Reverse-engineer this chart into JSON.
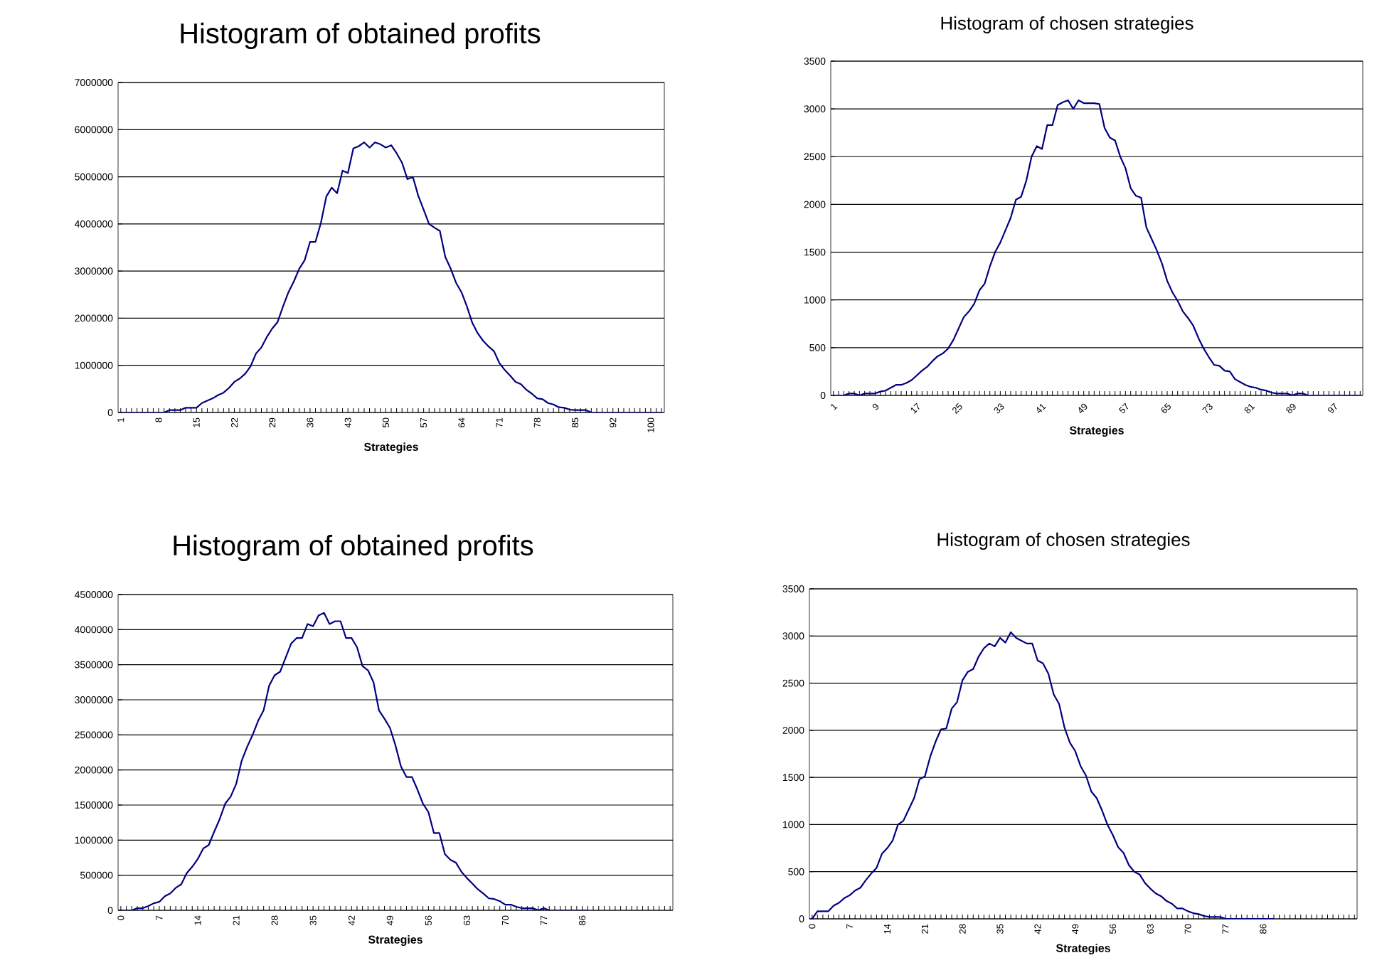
{
  "chart_data": [
    {
      "type": "line",
      "title": "Histogram of obtained profits",
      "xlabel": "Strategies",
      "categories": [
        "1",
        null,
        null,
        null,
        null,
        null,
        null,
        "8",
        null,
        null,
        null,
        null,
        null,
        null,
        "15",
        null,
        null,
        null,
        null,
        null,
        null,
        "22",
        null,
        null,
        null,
        null,
        null,
        null,
        "29",
        null,
        null,
        null,
        null,
        null,
        null,
        "36",
        null,
        null,
        null,
        null,
        null,
        null,
        "43",
        null,
        null,
        null,
        null,
        null,
        null,
        "50",
        null,
        null,
        null,
        null,
        null,
        null,
        "57",
        null,
        null,
        null,
        null,
        null,
        null,
        "64",
        null,
        null,
        null,
        null,
        null,
        null,
        "71",
        null,
        null,
        null,
        null,
        null,
        null,
        "78",
        null,
        null,
        null,
        null,
        null,
        null,
        "85",
        null,
        null,
        null,
        null,
        null,
        null,
        "92",
        null,
        null,
        null,
        null,
        null,
        null,
        "100",
        null,
        null
      ],
      "series": [
        {
          "color": "#000080",
          "values": [
            0,
            0,
            0,
            0,
            0,
            0,
            0,
            0,
            0,
            50000,
            50000,
            50000,
            100000,
            100000,
            100000,
            200000,
            250000,
            300000,
            370000,
            420000,
            520000,
            650000,
            720000,
            820000,
            980000,
            1250000,
            1380000,
            1600000,
            1780000,
            1920000,
            2250000,
            2550000,
            2780000,
            3050000,
            3230000,
            3620000,
            3620000,
            4020000,
            4580000,
            4770000,
            4650000,
            5130000,
            5080000,
            5600000,
            5650000,
            5730000,
            5620000,
            5730000,
            5690000,
            5620000,
            5670000,
            5500000,
            5300000,
            4950000,
            5000000,
            4600000,
            4300000,
            4000000,
            3920000,
            3850000,
            3300000,
            3050000,
            2750000,
            2550000,
            2250000,
            1900000,
            1680000,
            1520000,
            1400000,
            1300000,
            1050000,
            900000,
            780000,
            650000,
            600000,
            480000,
            400000,
            300000,
            280000,
            200000,
            170000,
            110000,
            100000,
            60000,
            50000,
            50000,
            50000,
            0,
            0,
            0,
            0,
            0,
            0,
            0,
            0,
            0,
            0,
            0,
            0,
            0,
            0
          ]
        }
      ],
      "ylim": [
        0,
        7000000
      ],
      "yticks": [
        0,
        1000000,
        2000000,
        3000000,
        4000000,
        5000000,
        6000000,
        7000000
      ],
      "grid": "y"
    },
    {
      "type": "line",
      "title": "Histogram of chosen strategies",
      "xlabel": "Strategies",
      "categories": [
        "1",
        null,
        null,
        null,
        null,
        null,
        null,
        null,
        "9",
        null,
        null,
        null,
        null,
        null,
        null,
        null,
        "17",
        null,
        null,
        null,
        null,
        null,
        null,
        null,
        "25",
        null,
        null,
        null,
        null,
        null,
        null,
        null,
        "33",
        null,
        null,
        null,
        null,
        null,
        null,
        null,
        "41",
        null,
        null,
        null,
        null,
        null,
        null,
        null,
        "49",
        null,
        null,
        null,
        null,
        null,
        null,
        null,
        "57",
        null,
        null,
        null,
        null,
        null,
        null,
        null,
        "65",
        null,
        null,
        null,
        null,
        null,
        null,
        null,
        "73",
        null,
        null,
        null,
        null,
        null,
        null,
        null,
        "81",
        null,
        null,
        null,
        null,
        null,
        null,
        null,
        "89",
        null,
        null,
        null,
        null,
        null,
        null,
        null,
        "97",
        null,
        null,
        null,
        null,
        null
      ],
      "series": [
        {
          "color": "#000080",
          "values": [
            0,
            0,
            0,
            20,
            20,
            0,
            20,
            20,
            20,
            40,
            50,
            80,
            110,
            110,
            130,
            160,
            210,
            260,
            300,
            360,
            410,
            440,
            490,
            580,
            700,
            820,
            880,
            960,
            1100,
            1170,
            1350,
            1500,
            1600,
            1730,
            1860,
            2050,
            2080,
            2250,
            2500,
            2610,
            2580,
            2830,
            2830,
            3040,
            3070,
            3090,
            3000,
            3090,
            3060,
            3060,
            3060,
            3050,
            2800,
            2700,
            2670,
            2500,
            2380,
            2170,
            2090,
            2070,
            1760,
            1640,
            1520,
            1380,
            1200,
            1080,
            990,
            880,
            810,
            730,
            600,
            490,
            400,
            320,
            310,
            260,
            250,
            170,
            140,
            110,
            90,
            80,
            60,
            50,
            30,
            20,
            20,
            20,
            0,
            20,
            20,
            0,
            0,
            0,
            0,
            0,
            0,
            0,
            0,
            0,
            0,
            0
          ]
        }
      ],
      "ylim": [
        0,
        3500
      ],
      "yticks": [
        0,
        500,
        1000,
        1500,
        2000,
        2500,
        3000,
        3500
      ],
      "grid": "y"
    },
    {
      "type": "line",
      "title": "Histogram of obtained profits",
      "xlabel": "Strategies",
      "categories": [
        "0",
        null,
        null,
        null,
        null,
        null,
        null,
        "7",
        null,
        null,
        null,
        null,
        null,
        null,
        "14",
        null,
        null,
        null,
        null,
        null,
        null,
        "21",
        null,
        null,
        null,
        null,
        null,
        null,
        "28",
        null,
        null,
        null,
        null,
        null,
        null,
        "35",
        null,
        null,
        null,
        null,
        null,
        null,
        "42",
        null,
        null,
        null,
        null,
        null,
        null,
        "49",
        null,
        null,
        null,
        null,
        null,
        null,
        "56",
        null,
        null,
        null,
        null,
        null,
        null,
        "63",
        null,
        null,
        null,
        null,
        null,
        null,
        "70",
        null,
        null,
        null,
        null,
        null,
        null,
        "77",
        null,
        null,
        null,
        null,
        null,
        null,
        "86",
        null,
        null,
        null,
        null,
        null,
        null,
        null,
        null,
        null,
        null,
        null,
        null,
        null,
        null,
        null,
        null
      ],
      "series": [
        {
          "color": "#000080",
          "values": [
            0,
            0,
            0,
            30000,
            30000,
            60000,
            100000,
            120000,
            200000,
            240000,
            320000,
            370000,
            530000,
            620000,
            730000,
            880000,
            930000,
            1120000,
            1300000,
            1520000,
            1620000,
            1800000,
            2130000,
            2330000,
            2500000,
            2700000,
            2850000,
            3200000,
            3350000,
            3400000,
            3600000,
            3800000,
            3880000,
            3880000,
            4080000,
            4050000,
            4200000,
            4240000,
            4080000,
            4120000,
            4120000,
            3880000,
            3880000,
            3750000,
            3480000,
            3420000,
            3250000,
            2850000,
            2730000,
            2600000,
            2350000,
            2050000,
            1900000,
            1900000,
            1720000,
            1520000,
            1400000,
            1100000,
            1100000,
            800000,
            720000,
            680000,
            550000,
            460000,
            380000,
            300000,
            240000,
            170000,
            160000,
            130000,
            80000,
            80000,
            50000,
            30000,
            30000,
            30000,
            0,
            30000,
            0,
            0,
            0,
            0,
            0,
            0,
            0,
            0,
            null,
            null,
            null,
            null,
            null,
            null,
            null,
            null,
            null,
            null,
            null,
            null,
            null,
            null,
            null
          ]
        }
      ],
      "ylim": [
        0,
        4500000
      ],
      "yticks": [
        0,
        500000,
        1000000,
        1500000,
        2000000,
        2500000,
        3000000,
        3500000,
        4000000,
        4500000
      ],
      "grid": "y"
    },
    {
      "type": "line",
      "title": "Histogram of chosen strategies",
      "xlabel": "Strategies",
      "categories": [
        "0",
        null,
        null,
        null,
        null,
        null,
        null,
        "7",
        null,
        null,
        null,
        null,
        null,
        null,
        "14",
        null,
        null,
        null,
        null,
        null,
        null,
        "21",
        null,
        null,
        null,
        null,
        null,
        null,
        "28",
        null,
        null,
        null,
        null,
        null,
        null,
        "35",
        null,
        null,
        null,
        null,
        null,
        null,
        "42",
        null,
        null,
        null,
        null,
        null,
        null,
        "49",
        null,
        null,
        null,
        null,
        null,
        null,
        "56",
        null,
        null,
        null,
        null,
        null,
        null,
        "63",
        null,
        null,
        null,
        null,
        null,
        null,
        "70",
        null,
        null,
        null,
        null,
        null,
        null,
        "77",
        null,
        null,
        null,
        null,
        null,
        null,
        "86",
        null,
        null,
        null,
        null,
        null,
        null,
        null,
        null,
        null,
        null,
        null,
        null,
        null,
        null,
        null,
        null,
        null
      ],
      "series": [
        {
          "color": "#000080",
          "values": [
            0,
            80,
            80,
            80,
            140,
            170,
            220,
            250,
            300,
            330,
            410,
            480,
            540,
            690,
            750,
            830,
            1000,
            1040,
            1160,
            1280,
            1480,
            1510,
            1720,
            1880,
            2010,
            2020,
            2230,
            2300,
            2530,
            2620,
            2650,
            2780,
            2870,
            2920,
            2890,
            2980,
            2930,
            3040,
            2980,
            2950,
            2920,
            2920,
            2740,
            2710,
            2600,
            2380,
            2280,
            2030,
            1870,
            1780,
            1620,
            1520,
            1350,
            1280,
            1150,
            1000,
            890,
            760,
            700,
            570,
            500,
            470,
            380,
            320,
            270,
            240,
            190,
            160,
            110,
            110,
            80,
            60,
            50,
            30,
            20,
            20,
            20,
            0,
            0,
            0,
            0,
            0,
            0,
            0,
            0,
            0,
            0,
            null,
            null,
            null,
            null,
            null,
            null,
            null,
            null,
            null,
            null,
            null,
            null,
            null,
            null,
            null
          ]
        }
      ],
      "ylim": [
        0,
        3500
      ],
      "yticks": [
        0,
        500,
        1000,
        1500,
        2000,
        2500,
        3000,
        3500
      ],
      "grid": "y"
    }
  ]
}
